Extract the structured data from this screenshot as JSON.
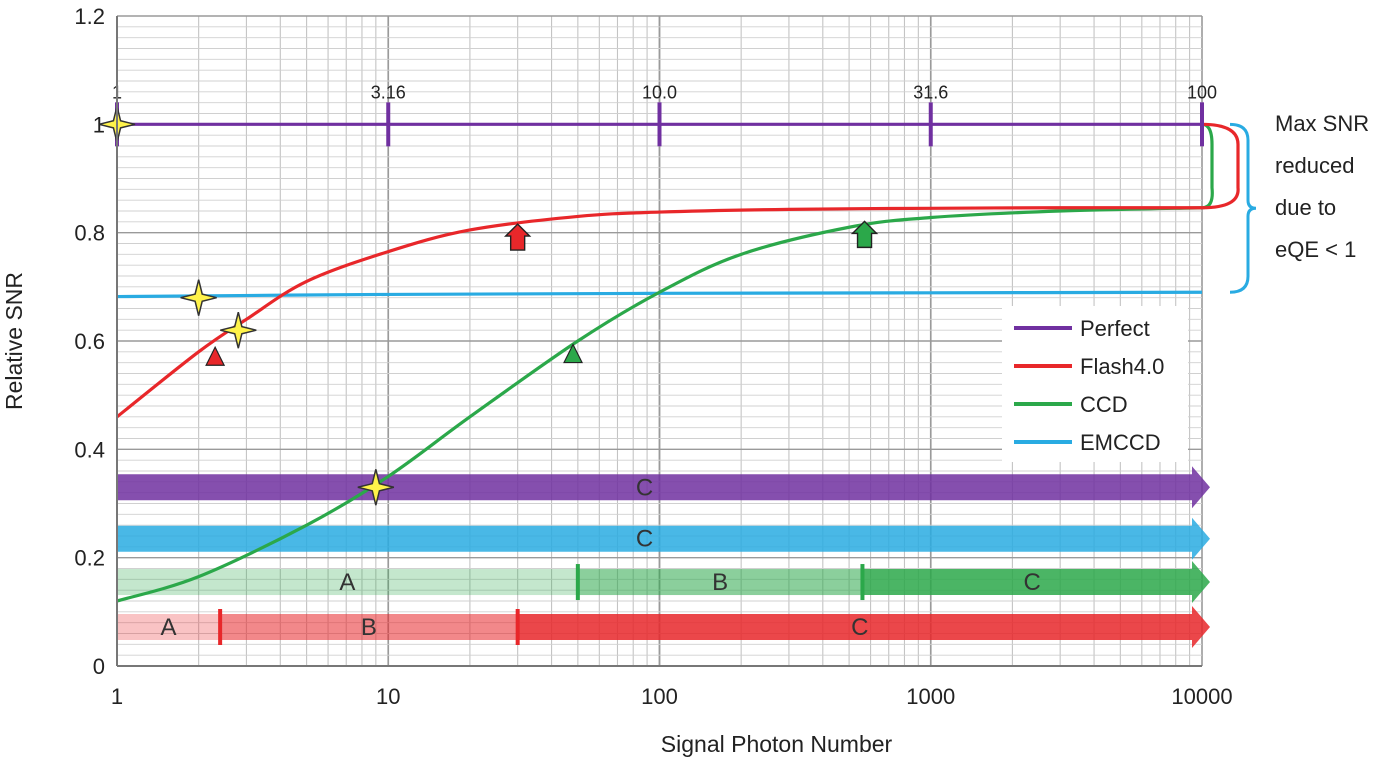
{
  "chart_data": {
    "type": "line",
    "xlabel": "Signal Photon Number",
    "ylabel": "Relative SNR",
    "xscale": "log",
    "xlim": [
      1,
      10000
    ],
    "ylim": [
      0,
      1.2
    ],
    "grid": true,
    "legend_placement": "center-right",
    "x_tick_labels": [
      "1",
      "10",
      "100",
      "1000",
      "10000"
    ],
    "y_tick_labels": [
      "0",
      "0.2",
      "0.4",
      "0.6",
      "0.8",
      "1",
      "1.2"
    ],
    "series": [
      {
        "name": "Perfect",
        "color": "#7030a0",
        "x": [
          1,
          10,
          100,
          1000,
          10000
        ],
        "y": [
          1.0,
          1.0,
          1.0,
          1.0,
          1.0
        ]
      },
      {
        "name": "Flash4.0",
        "color": "#e8272a",
        "x": [
          1,
          2,
          3,
          5,
          10,
          20,
          50,
          100,
          300,
          1000,
          3000,
          10000
        ],
        "y": [
          0.46,
          0.58,
          0.64,
          0.71,
          0.765,
          0.805,
          0.83,
          0.838,
          0.843,
          0.845,
          0.846,
          0.846
        ]
      },
      {
        "name": "CCD",
        "color": "#2ba84a",
        "x": [
          1,
          2,
          5,
          10,
          20,
          50,
          100,
          200,
          500,
          1000,
          3000,
          10000
        ],
        "y": [
          0.12,
          0.165,
          0.26,
          0.35,
          0.46,
          0.6,
          0.69,
          0.76,
          0.81,
          0.828,
          0.84,
          0.846
        ]
      },
      {
        "name": "EMCCD",
        "color": "#29abe2",
        "x": [
          1,
          10,
          100,
          1000,
          10000
        ],
        "y": [
          0.682,
          0.686,
          0.688,
          0.689,
          0.69
        ]
      }
    ],
    "top_scale": {
      "labels": [
        "1",
        "3.16",
        "10.0",
        "31.6",
        "100"
      ],
      "x": [
        1,
        10,
        100,
        1000,
        10000
      ]
    },
    "markers": {
      "stars": [
        {
          "x": 1,
          "y": 1.0
        },
        {
          "x": 2,
          "y": 0.68
        },
        {
          "x": 2.8,
          "y": 0.62
        },
        {
          "x": 9,
          "y": 0.33
        }
      ],
      "triangles": [
        {
          "x": 2.3,
          "y": 0.57,
          "color": "#e8272a"
        },
        {
          "x": 48,
          "y": 0.575,
          "color": "#2ba84a"
        }
      ],
      "up_arrows": [
        {
          "x": 30,
          "y": 0.79,
          "color": "#e8272a"
        },
        {
          "x": 570,
          "y": 0.795,
          "color": "#2ba84a"
        }
      ]
    },
    "regime_bars": [
      {
        "series": "Perfect",
        "y": 0.33,
        "color": "#7030a0",
        "segments": [
          {
            "label": "C",
            "from": 1,
            "to": 10000,
            "style": "solid"
          }
        ],
        "dividers": []
      },
      {
        "series": "EMCCD",
        "y": 0.235,
        "color": "#29abe2",
        "segments": [
          {
            "label": "C",
            "from": 1,
            "to": 10000,
            "style": "solid"
          }
        ],
        "dividers": []
      },
      {
        "series": "CCD",
        "y": 0.155,
        "color": "#2ba84a",
        "segments": [
          {
            "label": "A",
            "from": 1,
            "to": 50,
            "style": "faint"
          },
          {
            "label": "B",
            "from": 50,
            "to": 560,
            "style": "medium"
          },
          {
            "label": "C",
            "from": 560,
            "to": 10000,
            "style": "solid"
          }
        ],
        "dividers": [
          50,
          560
        ]
      },
      {
        "series": "Flash4.0",
        "y": 0.072,
        "color": "#e8272a",
        "segments": [
          {
            "label": "A",
            "from": 1,
            "to": 2.4,
            "style": "faint"
          },
          {
            "label": "B",
            "from": 2.4,
            "to": 30,
            "style": "medium"
          },
          {
            "label": "C",
            "from": 30,
            "to": 10000,
            "style": "solid"
          }
        ],
        "dividers": [
          2.4,
          30
        ]
      }
    ],
    "annotation": {
      "lines": [
        "Max SNR",
        "reduced",
        "due to",
        "eQE < 1"
      ],
      "bracket_y": [
        1.0,
        0.69
      ]
    }
  }
}
